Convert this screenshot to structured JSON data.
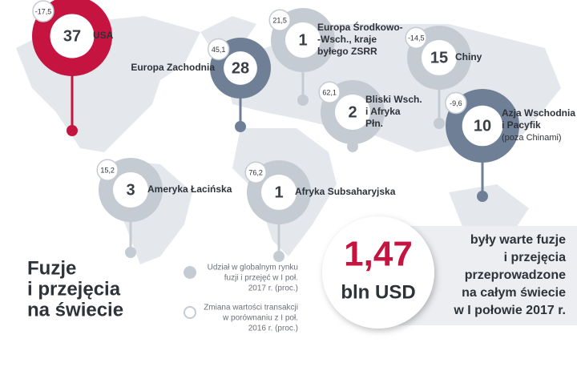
{
  "title": [
    "Fuzje",
    "i przejęcia",
    "na świecie"
  ],
  "regions": [
    {
      "share": "37",
      "change": "-17,5",
      "label": [
        "USA"
      ]
    },
    {
      "share": "28",
      "change": "45,1",
      "label": [
        "Europa Zachodnia"
      ]
    },
    {
      "share": "1",
      "change": "21,5",
      "label": [
        "Europa Środkowo-",
        "-Wsch., kraje",
        "byłego ZSRR"
      ]
    },
    {
      "share": "15",
      "change": "-14,5",
      "label": [
        "Chiny"
      ]
    },
    {
      "share": "2",
      "change": "62,1",
      "label": [
        "Bliski Wsch.",
        "i Afryka",
        "Płn."
      ]
    },
    {
      "share": "10",
      "change": "-9,6",
      "label": [
        "Azja Wschodnia",
        "i Pacyfik",
        "(poza Chinami)"
      ]
    },
    {
      "share": "3",
      "change": "15,2",
      "label": [
        "Ameryka Łacińska"
      ]
    },
    {
      "share": "1",
      "change": "76,2",
      "label": [
        "Afryka Subsaharyjska"
      ]
    }
  ],
  "legend": [
    [
      "Udział w globalnym rynku",
      "fuzji i przejęć w I poł.",
      "2017 r. (proc.)"
    ],
    [
      "Zmiana wartości transakcji",
      "w porównaniu z I poł.",
      "2016 r. (proc.)"
    ]
  ],
  "highlight": {
    "value": "1,47",
    "unit": "bln USD"
  },
  "description": [
    "były warte fuzje",
    "i przejęcia",
    "przeprowadzone",
    "na całym świecie",
    "w I połowie 2017 r."
  ]
}
